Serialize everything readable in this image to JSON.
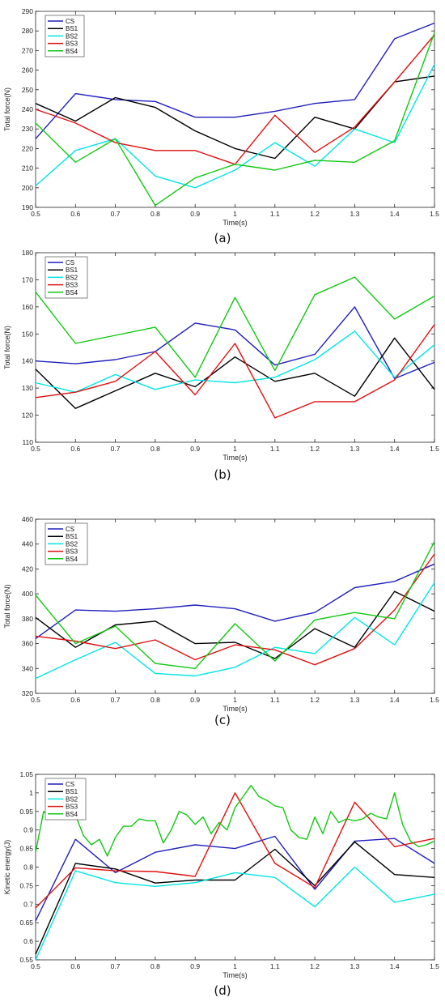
{
  "colors": {
    "CS": "#1f1fbf",
    "BS1": "#000000",
    "BS2": "#00e5e5",
    "BS3": "#e01010",
    "BS4": "#10c810"
  },
  "chart_data": [
    {
      "type": "line",
      "caption": "(a)",
      "xlabel": "Time(s)",
      "ylabel": "Total force(N)",
      "xlim": [
        0.5,
        1.5
      ],
      "ylim": [
        190,
        290
      ],
      "xticks": [
        0.5,
        0.6,
        0.7,
        0.8,
        0.9,
        1,
        1.1,
        1.2,
        1.3,
        1.4,
        1.5
      ],
      "yticks": [
        190,
        200,
        210,
        220,
        230,
        240,
        250,
        260,
        270,
        280,
        290
      ],
      "legend_position": "top-left",
      "series": [
        {
          "name": "CS",
          "x": [
            0.5,
            0.6,
            0.7,
            0.8,
            0.9,
            1,
            1.1,
            1.2,
            1.3,
            1.4,
            1.5
          ],
          "y": [
            225,
            248,
            245,
            244,
            236,
            236,
            239,
            243,
            245,
            276,
            284
          ]
        },
        {
          "name": "BS1",
          "x": [
            0.5,
            0.6,
            0.7,
            0.8,
            0.9,
            1,
            1.1,
            1.2,
            1.3,
            1.4,
            1.5
          ],
          "y": [
            243,
            234,
            246,
            241,
            229,
            220,
            215,
            236,
            230,
            254,
            257
          ]
        },
        {
          "name": "BS2",
          "x": [
            0.5,
            0.6,
            0.7,
            0.8,
            0.9,
            1,
            1.1,
            1.2,
            1.3,
            1.4,
            1.5
          ],
          "y": [
            201,
            219,
            225,
            206,
            200,
            209,
            223,
            211,
            230,
            223,
            263
          ]
        },
        {
          "name": "BS3",
          "x": [
            0.5,
            0.6,
            0.7,
            0.8,
            0.9,
            1,
            1.1,
            1.2,
            1.3,
            1.4,
            1.5
          ],
          "y": [
            240,
            233,
            223,
            219,
            219,
            212,
            237,
            218,
            231,
            254,
            278
          ]
        },
        {
          "name": "BS4",
          "x": [
            0.5,
            0.6,
            0.7,
            0.8,
            0.9,
            1,
            1.1,
            1.2,
            1.3,
            1.4,
            1.5
          ],
          "y": [
            233,
            213,
            225,
            191,
            205,
            212,
            209,
            214,
            213,
            224,
            279
          ]
        }
      ]
    },
    {
      "type": "line",
      "caption": "(b)",
      "xlabel": "Time(s)",
      "ylabel": "Total force(N)",
      "xlim": [
        0.5,
        1.5
      ],
      "ylim": [
        110,
        180
      ],
      "xticks": [
        0.5,
        0.6,
        0.7,
        0.8,
        0.9,
        1,
        1.1,
        1.2,
        1.3,
        1.4,
        1.5
      ],
      "yticks": [
        110,
        120,
        130,
        140,
        150,
        160,
        170,
        180
      ],
      "legend_position": "top-left",
      "series": [
        {
          "name": "CS",
          "x": [
            0.5,
            0.6,
            0.7,
            0.8,
            0.9,
            1,
            1.1,
            1.2,
            1.3,
            1.4,
            1.5
          ],
          "y": [
            140,
            139,
            140.5,
            143.5,
            154,
            151.5,
            138.5,
            142.5,
            160,
            133.5,
            139.5
          ]
        },
        {
          "name": "BS1",
          "x": [
            0.5,
            0.6,
            0.7,
            0.8,
            0.9,
            1,
            1.1,
            1.2,
            1.3,
            1.4,
            1.5
          ],
          "y": [
            137,
            122.5,
            129,
            135.5,
            130.5,
            141.5,
            132.5,
            135.5,
            127,
            148.5,
            129.5
          ]
        },
        {
          "name": "BS2",
          "x": [
            0.5,
            0.6,
            0.7,
            0.8,
            0.9,
            1,
            1.1,
            1.2,
            1.3,
            1.4,
            1.5
          ],
          "y": [
            132,
            128.5,
            135,
            129.5,
            133,
            132,
            134,
            140.5,
            151,
            134,
            146
          ]
        },
        {
          "name": "BS3",
          "x": [
            0.5,
            0.6,
            0.7,
            0.8,
            0.9,
            1,
            1.1,
            1.2,
            1.3,
            1.4,
            1.5
          ],
          "y": [
            126.5,
            128.5,
            132.5,
            143.5,
            127.5,
            146.5,
            119,
            125,
            125,
            133,
            153.5
          ]
        },
        {
          "name": "BS4",
          "x": [
            0.5,
            0.6,
            0.7,
            0.8,
            0.9,
            1,
            1.1,
            1.2,
            1.3,
            1.4,
            1.5
          ],
          "y": [
            165.5,
            146.5,
            149.5,
            152.5,
            134,
            163.5,
            136.5,
            164.5,
            171,
            155.5,
            164
          ]
        }
      ]
    },
    {
      "type": "line",
      "caption": "(c)",
      "xlabel": "Time(s)",
      "ylabel": "Total force(N)",
      "xlim": [
        0.5,
        1.5
      ],
      "ylim": [
        320,
        460
      ],
      "xticks": [
        0.5,
        0.6,
        0.7,
        0.8,
        0.9,
        1,
        1.1,
        1.2,
        1.3,
        1.4,
        1.5
      ],
      "yticks": [
        320,
        340,
        360,
        380,
        400,
        420,
        440,
        460
      ],
      "legend_position": "top-left",
      "series": [
        {
          "name": "CS",
          "x": [
            0.5,
            0.6,
            0.7,
            0.8,
            0.9,
            1,
            1.1,
            1.2,
            1.3,
            1.4,
            1.5
          ],
          "y": [
            364,
            387,
            386,
            388,
            391,
            388,
            378,
            385,
            405,
            410,
            424
          ]
        },
        {
          "name": "BS1",
          "x": [
            0.5,
            0.6,
            0.7,
            0.8,
            0.9,
            1,
            1.1,
            1.2,
            1.3,
            1.4,
            1.5
          ],
          "y": [
            381,
            357,
            375,
            378,
            360,
            361,
            348,
            372,
            357,
            402,
            386
          ]
        },
        {
          "name": "BS2",
          "x": [
            0.5,
            0.6,
            0.7,
            0.8,
            0.9,
            1,
            1.1,
            1.2,
            1.3,
            1.4,
            1.5
          ],
          "y": [
            332,
            347,
            361,
            336,
            334,
            341,
            357,
            352,
            381,
            359,
            409
          ]
        },
        {
          "name": "BS3",
          "x": [
            0.5,
            0.6,
            0.7,
            0.8,
            0.9,
            1,
            1.1,
            1.2,
            1.3,
            1.4,
            1.5
          ],
          "y": [
            366,
            362,
            356,
            363,
            347,
            359,
            355,
            343,
            356,
            387,
            432
          ]
        },
        {
          "name": "BS4",
          "x": [
            0.5,
            0.6,
            0.7,
            0.8,
            0.9,
            1,
            1.1,
            1.2,
            1.3,
            1.4,
            1.5
          ],
          "y": [
            399,
            360,
            374,
            344,
            340,
            376,
            346,
            379,
            385,
            380,
            442
          ]
        }
      ]
    },
    {
      "type": "line",
      "caption": "(d)",
      "xlabel": "Time(s)",
      "ylabel": "Kinetic energy(J)",
      "xlim": [
        0.5,
        1.5
      ],
      "ylim": [
        0.55,
        1.05
      ],
      "xticks": [
        0.5,
        0.6,
        0.7,
        0.8,
        0.9,
        1,
        1.1,
        1.2,
        1.3,
        1.4,
        1.5
      ],
      "yticks": [
        0.55,
        0.6,
        0.65,
        0.7,
        0.75,
        0.8,
        0.85,
        0.9,
        0.95,
        1,
        1.05
      ],
      "legend_position": "top-left",
      "series": [
        {
          "name": "CS",
          "x": [
            0.5,
            0.6,
            0.7,
            0.8,
            0.9,
            1,
            1.1,
            1.2,
            1.3,
            1.4,
            1.5
          ],
          "y": [
            0.655,
            0.875,
            0.785,
            0.84,
            0.86,
            0.85,
            0.883,
            0.74,
            0.87,
            0.877,
            0.81
          ]
        },
        {
          "name": "BS1",
          "x": [
            0.5,
            0.6,
            0.7,
            0.8,
            0.9,
            1,
            1.1,
            1.2,
            1.3,
            1.4,
            1.5
          ],
          "y": [
            0.565,
            0.81,
            0.795,
            0.757,
            0.765,
            0.765,
            0.848,
            0.75,
            0.868,
            0.78,
            0.772
          ]
        },
        {
          "name": "BS2",
          "x": [
            0.5,
            0.6,
            0.7,
            0.8,
            0.9,
            1,
            1.1,
            1.2,
            1.3,
            1.4,
            1.5
          ],
          "y": [
            0.55,
            0.79,
            0.758,
            0.748,
            0.758,
            0.785,
            0.772,
            0.693,
            0.8,
            0.705,
            0.727
          ]
        },
        {
          "name": "BS3",
          "x": [
            0.5,
            0.6,
            0.7,
            0.8,
            0.9,
            1,
            1.1,
            1.2,
            1.3,
            1.4,
            1.5
          ],
          "y": [
            0.69,
            0.798,
            0.79,
            0.788,
            0.775,
            1.0,
            0.81,
            0.745,
            0.975,
            0.855,
            0.877
          ]
        },
        {
          "name": "BS4",
          "x": [
            0.5,
            0.52,
            0.54,
            0.56,
            0.58,
            0.6,
            0.62,
            0.64,
            0.66,
            0.68,
            0.7,
            0.72,
            0.74,
            0.76,
            0.78,
            0.8,
            0.82,
            0.84,
            0.86,
            0.88,
            0.9,
            0.92,
            0.94,
            0.96,
            0.98,
            1.0,
            1.02,
            1.04,
            1.06,
            1.08,
            1.1,
            1.12,
            1.14,
            1.16,
            1.18,
            1.2,
            1.22,
            1.24,
            1.26,
            1.28,
            1.3,
            1.32,
            1.34,
            1.36,
            1.38,
            1.4,
            1.42,
            1.44,
            1.46,
            1.48,
            1.5
          ],
          "y": [
            0.84,
            0.95,
            0.93,
            0.98,
            0.93,
            0.94,
            0.885,
            0.86,
            0.875,
            0.83,
            0.88,
            0.91,
            0.91,
            0.93,
            0.925,
            0.925,
            0.865,
            0.9,
            0.95,
            0.94,
            0.915,
            0.935,
            0.89,
            0.92,
            0.9,
            0.96,
            0.99,
            1.02,
            0.99,
            0.98,
            0.965,
            0.96,
            0.9,
            0.88,
            0.875,
            0.935,
            0.89,
            0.95,
            0.92,
            0.93,
            0.925,
            0.93,
            0.945,
            0.935,
            0.93,
            1.0,
            0.915,
            0.87,
            0.855,
            0.86,
            0.87
          ]
        }
      ]
    }
  ]
}
